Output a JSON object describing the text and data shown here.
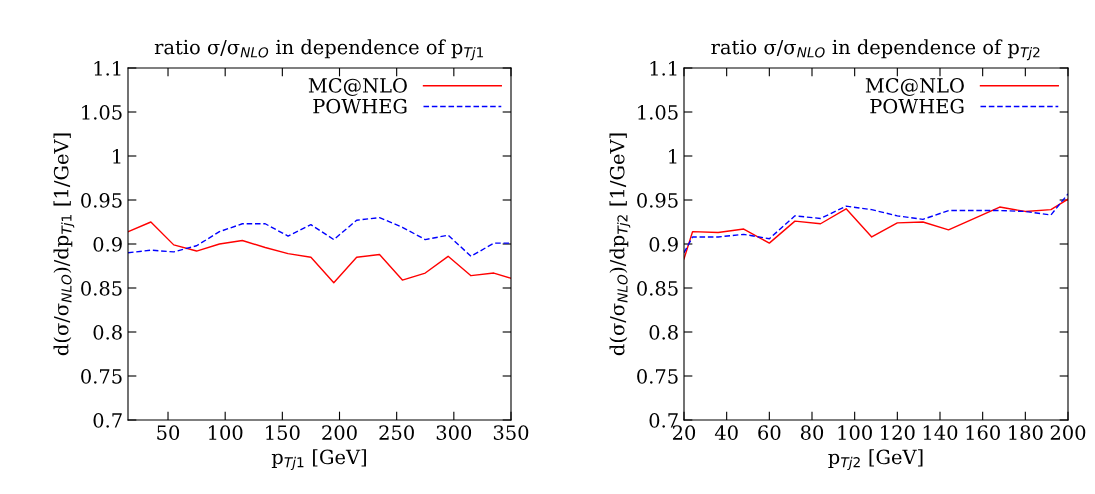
{
  "chart_data": [
    {
      "type": "line",
      "title": "ratio σ/σ$_{NLO}$ in dependence of p$_{Tj1}$",
      "xlabel": "p$_{Tj1}$ [GeV]",
      "ylabel": "d(σ/σ$_{NLO}$)/dp$_{Tj1}$ [1/GeV]",
      "x": [
        15,
        35,
        55,
        75,
        95,
        115,
        135,
        155,
        175,
        195,
        215,
        235,
        255,
        275,
        295,
        315,
        335,
        350
      ],
      "series": [
        {
          "name": "MC@NLO",
          "color": "#ff0000",
          "line_style": "solid",
          "values": [
            0.914,
            0.925,
            0.899,
            0.892,
            0.9,
            0.904,
            0.896,
            0.889,
            0.885,
            0.856,
            0.885,
            0.888,
            0.859,
            0.867,
            0.886,
            0.864,
            0.867,
            0.861
          ]
        },
        {
          "name": "POWHEG",
          "color": "#0000ff",
          "line_style": "dashed",
          "values": [
            0.89,
            0.893,
            0.891,
            0.898,
            0.914,
            0.923,
            0.923,
            0.909,
            0.922,
            0.905,
            0.927,
            0.93,
            0.919,
            0.905,
            0.91,
            0.886,
            0.901,
            0.901
          ]
        }
      ],
      "xlim": [
        15,
        350
      ],
      "xticks": [
        50,
        100,
        150,
        200,
        250,
        300,
        350
      ],
      "ylim": [
        0.7,
        1.1
      ],
      "yticks": [
        0.7,
        0.75,
        0.8,
        0.85,
        0.9,
        0.95,
        1,
        1.05,
        1.1
      ],
      "grid": false,
      "legend": "top right",
      "marker": "none"
    },
    {
      "type": "line",
      "title": "ratio σ/σ$_{NLO}$ in dependence of p$_{Tj2}$",
      "xlabel": "p$_{Tj2}$ [GeV]",
      "ylabel": "d(σ/σ$_{NLO}$)/dp$_{Tj2}$ [1/GeV]",
      "x": [
        20,
        24,
        36,
        48,
        60,
        72,
        84,
        96,
        108,
        120,
        132,
        144,
        168,
        180,
        192,
        200
      ],
      "series": [
        {
          "name": "MC@NLO",
          "color": "#ff0000",
          "line_style": "solid",
          "values": [
            0.883,
            0.914,
            0.913,
            0.917,
            0.901,
            0.926,
            0.923,
            0.94,
            0.908,
            0.924,
            0.925,
            0.916,
            0.942,
            0.937,
            0.939,
            0.951
          ]
        },
        {
          "name": "POWHEG",
          "color": "#0000ff",
          "line_style": "dashed",
          "values": [
            0.89,
            0.908,
            0.908,
            0.911,
            0.906,
            0.932,
            0.929,
            0.943,
            0.939,
            0.932,
            0.928,
            0.938,
            0.938,
            0.937,
            0.933,
            0.957
          ]
        }
      ],
      "xlim": [
        20,
        200
      ],
      "xticks": [
        20,
        40,
        60,
        80,
        100,
        120,
        140,
        160,
        180,
        200
      ],
      "ylim": [
        0.7,
        1.1
      ],
      "yticks": [
        0.7,
        0.75,
        0.8,
        0.85,
        0.9,
        0.95,
        1,
        1.05,
        1.1
      ],
      "grid": false,
      "legend": "top right",
      "marker": "none"
    }
  ]
}
